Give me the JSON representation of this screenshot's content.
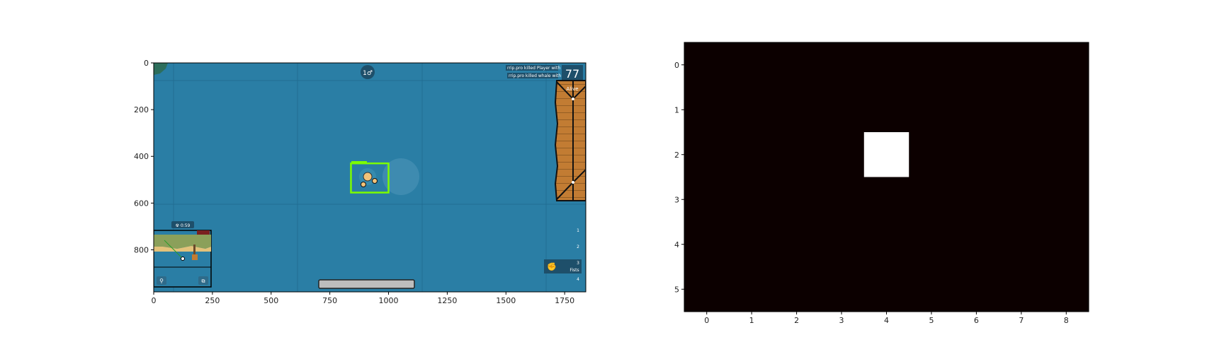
{
  "figure": {
    "left_panel": {
      "x_ticks": [
        "0",
        "250",
        "500",
        "750",
        "1000",
        "1250",
        "1500",
        "1750"
      ],
      "y_ticks": [
        "0",
        "200",
        "400",
        "600",
        "800"
      ],
      "x_tick_values": [
        0,
        250,
        500,
        750,
        1000,
        1250,
        1500,
        1750
      ],
      "y_tick_values": [
        0,
        200,
        400,
        600,
        800
      ],
      "xlim": [
        0,
        1840
      ],
      "ylim": [
        980,
        0
      ],
      "game": {
        "water_color": "#2a7ea5",
        "top_center_badge": "1♂",
        "alive_count": "77",
        "alive_label": "Alive",
        "kill_feed": [
          "rrip.pro killed Player with SMG",
          "rrip.pro killed whale with ammo"
        ],
        "gas_timer": "☢ 0:59",
        "weapon_slots": [
          "1",
          "2",
          "3",
          "4"
        ],
        "selected_slot_label": "Fists",
        "player_box": {
          "color": "#7cfc00",
          "x0": 840,
          "y0": 430,
          "x1": 1000,
          "y1": 555
        },
        "minimap": {
          "visible": true
        },
        "building": {
          "color": "#c27c33"
        }
      }
    },
    "right_panel": {
      "x_ticks": [
        "0",
        "1",
        "2",
        "3",
        "4",
        "5",
        "6",
        "7",
        "8"
      ],
      "y_ticks": [
        "0",
        "1",
        "2",
        "3",
        "4",
        "5"
      ],
      "x_tick_values": [
        0,
        1,
        2,
        3,
        4,
        5,
        6,
        7,
        8
      ],
      "y_tick_values": [
        0,
        1,
        2,
        3,
        4,
        5
      ],
      "xlim": [
        -0.5,
        8.5
      ],
      "ylim": [
        5.5,
        -0.5
      ],
      "grid": {
        "rows": 6,
        "cols": 9,
        "background_color": "#0c0000",
        "highlight_color": "#ffffff",
        "highlight_cells": [
          [
            2,
            4
          ]
        ]
      }
    }
  }
}
